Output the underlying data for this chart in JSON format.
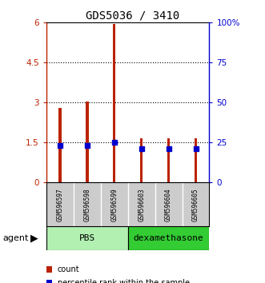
{
  "title": "GDS5036 / 3410",
  "samples": [
    "GSM596597",
    "GSM596598",
    "GSM596599",
    "GSM596603",
    "GSM596604",
    "GSM596605"
  ],
  "count_values": [
    2.8,
    3.05,
    5.95,
    1.65,
    1.65,
    1.65
  ],
  "percentile_values": [
    23,
    23,
    25,
    21,
    21,
    21
  ],
  "groups": [
    {
      "label": "PBS",
      "indices": [
        0,
        1,
        2
      ],
      "color": "#b2f0b2"
    },
    {
      "label": "dexamethasone",
      "indices": [
        3,
        4,
        5
      ],
      "color": "#33cc33"
    }
  ],
  "bar_color": "#BB2200",
  "percentile_color": "#0000CC",
  "left_yticks": [
    0,
    1.5,
    3,
    4.5,
    6
  ],
  "left_yticklabels": [
    "0",
    "1.5",
    "3",
    "4.5",
    "6"
  ],
  "right_yticks": [
    0,
    25,
    50,
    75,
    100
  ],
  "right_yticklabels": [
    "0",
    "25",
    "50",
    "75",
    "100%"
  ],
  "grid_yticks": [
    1.5,
    3.0,
    4.5
  ],
  "ylim_left": [
    0,
    6
  ],
  "ylim_right": [
    0,
    100
  ],
  "bar_width": 0.1,
  "background_color": "#ffffff",
  "sample_bg_color": "#cccccc",
  "agent_label": "agent",
  "legend_items": [
    {
      "label": "count",
      "color": "#BB2200"
    },
    {
      "label": "percentile rank within the sample",
      "color": "#0000CC"
    }
  ]
}
